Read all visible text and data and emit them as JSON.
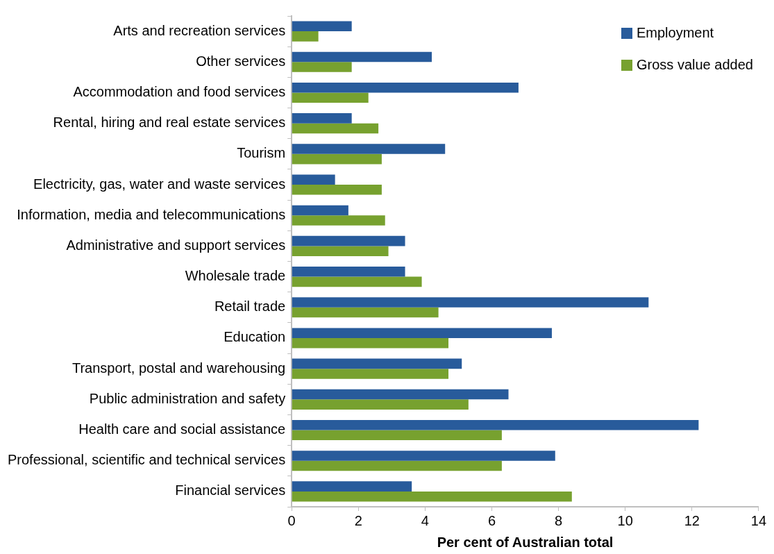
{
  "chart_data": {
    "type": "bar",
    "orientation": "horizontal",
    "xlabel": "Per cent of Australian total",
    "categories": [
      "Arts and recreation services",
      "Other services",
      "Accommodation and food services",
      "Rental, hiring and real estate services",
      "Tourism",
      "Electricity, gas, water and waste services",
      "Information, media and telecommunications",
      "Administrative and support services",
      "Wholesale trade",
      "Retail trade",
      "Education",
      "Transport, postal and warehousing",
      "Public administration and safety",
      "Health care and social assistance",
      "Professional, scientific and technical services",
      "Financial services"
    ],
    "series": [
      {
        "name": "Employment",
        "color": "#285b9b",
        "values": [
          1.8,
          4.2,
          6.8,
          1.8,
          4.6,
          1.3,
          1.7,
          3.4,
          3.4,
          10.7,
          7.8,
          5.1,
          6.5,
          12.2,
          7.9,
          3.6
        ]
      },
      {
        "name": "Gross value added",
        "color": "#77a12f",
        "values": [
          0.8,
          1.8,
          2.3,
          2.6,
          2.7,
          2.7,
          2.8,
          2.9,
          3.9,
          4.4,
          4.7,
          4.7,
          5.3,
          6.3,
          6.3,
          8.4
        ]
      }
    ],
    "xlim": [
      0,
      14
    ],
    "xticks": [
      0,
      2,
      4,
      6,
      8,
      10,
      12,
      14
    ],
    "grid": false,
    "legend": "top right"
  }
}
